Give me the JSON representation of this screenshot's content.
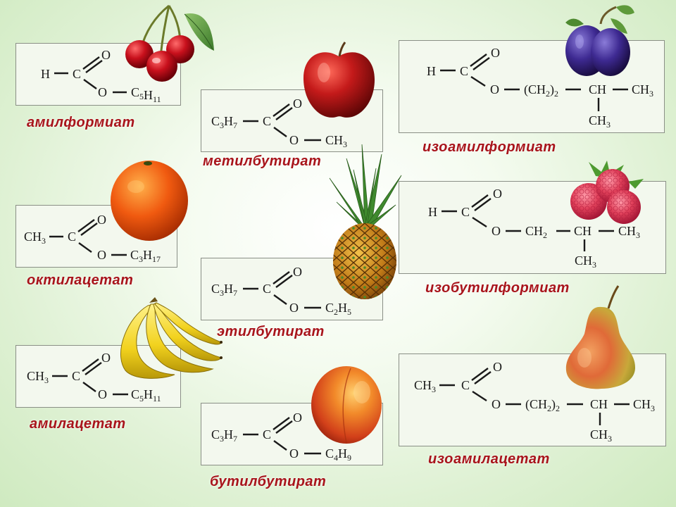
{
  "esters": [
    {
      "id": "amylformate",
      "name": "амилформиат",
      "fruit": "cherry-icon",
      "formula": {
        "left": "H",
        "center": "C",
        "top": "O",
        "bottom": "O",
        "r1": "C5H11"
      }
    },
    {
      "id": "methylbutyrate",
      "name": "метилбутират",
      "fruit": "apple-icon",
      "formula": {
        "left": "C3H7",
        "center": "C",
        "top": "O",
        "bottom": "O",
        "r1": "CH3"
      }
    },
    {
      "id": "isoamylformate",
      "name": "изоамилформиат",
      "fruit": "plum-icon",
      "formula": {
        "left": "H",
        "center": "C",
        "top": "O",
        "bottom": "O",
        "chain": "(CH2)2",
        "ch": "CH",
        "right": "CH3",
        "branch": "CH3"
      }
    },
    {
      "id": "octylacetate",
      "name": "октилацетат",
      "fruit": "orange-icon",
      "formula": {
        "left": "CH3",
        "center": "C",
        "top": "O",
        "bottom": "O",
        "r1": "C3H17"
      }
    },
    {
      "id": "ethylbutyrate",
      "name": "этилбутират",
      "fruit": "pineapple-icon",
      "formula": {
        "left": "C3H7",
        "center": "C",
        "top": "O",
        "bottom": "O",
        "r1": "C2H5"
      }
    },
    {
      "id": "isobutylformate",
      "name": "изобутилформиат",
      "fruit": "raspberry-icon",
      "formula": {
        "left": "H",
        "center": "C",
        "top": "O",
        "bottom": "O",
        "chain": "CH2",
        "ch": "CH",
        "right": "CH3",
        "branch": "CH3"
      }
    },
    {
      "id": "amylacetate",
      "name": "амилацетат",
      "fruit": "banana-icon",
      "formula": {
        "left": "CH3",
        "center": "C",
        "top": "O",
        "bottom": "O",
        "r1": "C5H11"
      }
    },
    {
      "id": "butylbutyrate",
      "name": "бутилбутират",
      "fruit": "peach-icon",
      "formula": {
        "left": "C3H7",
        "center": "C",
        "top": "O",
        "bottom": "O",
        "r1": "C4H9"
      }
    },
    {
      "id": "isoamylacetate",
      "name": "изоамилацетат",
      "fruit": "pear-icon",
      "formula": {
        "left": "CH3",
        "center": "C",
        "top": "O",
        "bottom": "O",
        "chain": "(CH2)2",
        "ch": "CH",
        "right": "CH3",
        "branch": "CH3"
      }
    }
  ],
  "colors": {
    "label": "#a8141b",
    "box_border": "#8a8f86",
    "background": "#dff1d4"
  }
}
